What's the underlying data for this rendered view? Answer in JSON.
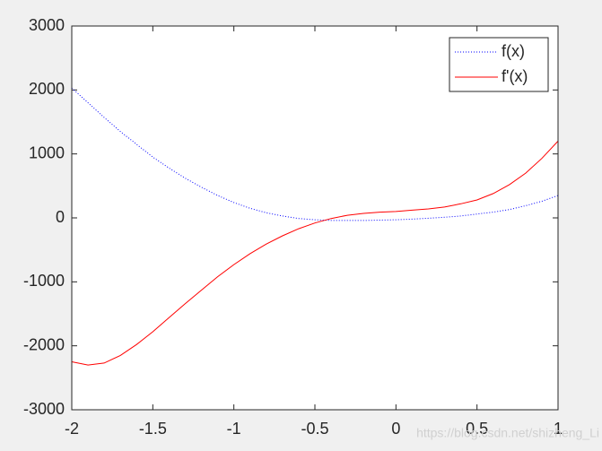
{
  "chart_data": {
    "type": "line",
    "x": [
      -2,
      -1.9,
      -1.8,
      -1.7,
      -1.6,
      -1.5,
      -1.4,
      -1.3,
      -1.2,
      -1.1,
      -1,
      -0.9,
      -0.8,
      -0.7,
      -0.6,
      -0.5,
      -0.4,
      -0.3,
      -0.2,
      -0.1,
      0,
      0.1,
      0.2,
      0.3,
      0.4,
      0.5,
      0.6,
      0.7,
      0.8,
      0.9,
      1
    ],
    "series": [
      {
        "name": "f(x)",
        "color": "#0000ff",
        "style": "dotted",
        "values": [
          2030,
          1800,
          1570,
          1350,
          1150,
          950,
          780,
          620,
          480,
          350,
          240,
          150,
          80,
          30,
          -10,
          -30,
          -40,
          -40,
          -40,
          -35,
          -30,
          -20,
          -5,
          10,
          30,
          60,
          90,
          130,
          190,
          260,
          350
        ]
      },
      {
        "name": "f'(x)",
        "color": "#ff0000",
        "style": "solid",
        "values": [
          -2250,
          -2300,
          -2270,
          -2150,
          -1980,
          -1780,
          -1560,
          -1340,
          -1130,
          -920,
          -730,
          -560,
          -410,
          -280,
          -170,
          -80,
          -10,
          40,
          70,
          90,
          100,
          120,
          140,
          170,
          220,
          280,
          380,
          520,
          700,
          930,
          1200
        ]
      }
    ],
    "xlim": [
      -2,
      1
    ],
    "xticks": [
      -2,
      -1.5,
      -1,
      -0.5,
      0,
      0.5,
      1
    ],
    "ylim": [
      -3000,
      3000
    ],
    "yticks": [
      -3000,
      -2000,
      -1000,
      0,
      1000,
      2000,
      3000
    ],
    "legend": "upper right",
    "watermark": "https://blog.csdn.net/shizheng_Li"
  }
}
